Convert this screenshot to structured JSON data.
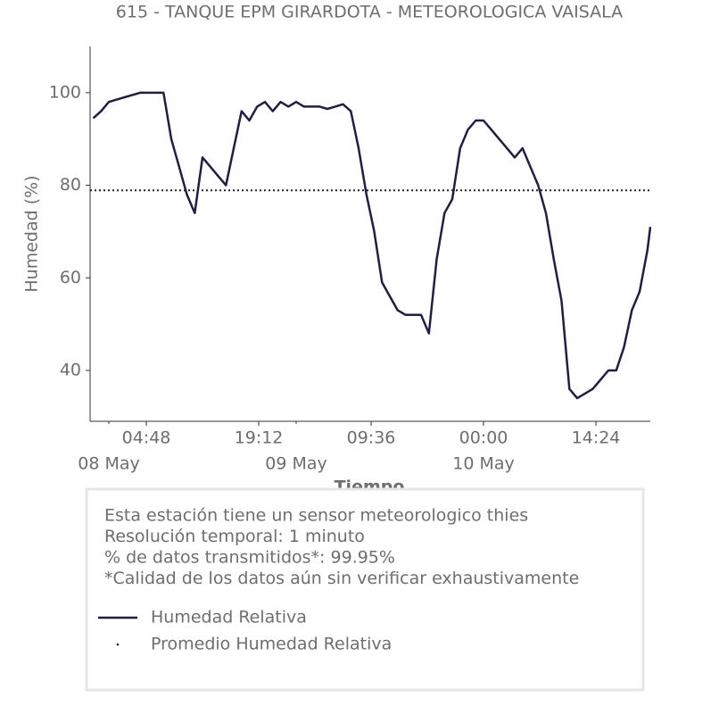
{
  "chart_data": {
    "type": "line",
    "title": "615 - TANQUE EPM GIRARDOTA - METEOROLOGICA VAISALA",
    "xlabel": "Tiempo",
    "ylabel": "Humedad (%)",
    "xlim": [
      "07 May 21:36",
      "10 May 21:22"
    ],
    "xticks": [
      {
        "value": "08 May 04:48",
        "label": "04:48"
      },
      {
        "value": "08 May 19:12",
        "label": "19:12"
      },
      {
        "value": "09 May 09:36",
        "label": "09:36"
      },
      {
        "value": "10 May 00:00",
        "label": "00:00"
      },
      {
        "value": "10 May 14:24",
        "label": "14:24"
      }
    ],
    "xticks_minor": [
      {
        "value": "08 May 00:00",
        "label": "08 May"
      },
      {
        "value": "09 May 00:00",
        "label": "09 May"
      },
      {
        "value": "10 May 00:00",
        "label": "10 May"
      }
    ],
    "ylim": [
      29,
      110
    ],
    "yticks": [
      40,
      60,
      80,
      100
    ],
    "x": [
      "07 May 22:00",
      "07 May 23:00",
      "08 May 00:00",
      "08 May 01:00",
      "08 May 02:00",
      "08 May 03:00",
      "08 May 04:00",
      "08 May 05:00",
      "08 May 06:00",
      "08 May 07:00",
      "08 May 08:00",
      "08 May 09:00",
      "08 May 10:00",
      "08 May 11:00",
      "08 May 12:00",
      "08 May 13:00",
      "08 May 14:00",
      "08 May 15:00",
      "08 May 16:00",
      "08 May 17:00",
      "08 May 18:00",
      "08 May 19:00",
      "08 May 20:00",
      "08 May 21:00",
      "08 May 22:00",
      "08 May 23:00",
      "09 May 00:00",
      "09 May 01:00",
      "09 May 02:00",
      "09 May 03:00",
      "09 May 04:00",
      "09 May 05:00",
      "09 May 06:00",
      "09 May 07:00",
      "09 May 08:00",
      "09 May 09:00",
      "09 May 10:00",
      "09 May 11:00",
      "09 May 12:00",
      "09 May 13:00",
      "09 May 14:00",
      "09 May 15:00",
      "09 May 16:00",
      "09 May 17:00",
      "09 May 18:00",
      "09 May 19:00",
      "09 May 20:00",
      "09 May 21:00",
      "09 May 22:00",
      "09 May 23:00",
      "10 May 00:00",
      "10 May 01:00",
      "10 May 02:00",
      "10 May 03:00",
      "10 May 04:00",
      "10 May 05:00",
      "10 May 06:00",
      "10 May 07:00",
      "10 May 08:00",
      "10 May 09:00",
      "10 May 10:00",
      "10 May 11:00",
      "10 May 12:00",
      "10 May 13:00",
      "10 May 14:00",
      "10 May 15:00",
      "10 May 16:00",
      "10 May 17:00",
      "10 May 18:00",
      "10 May 19:00",
      "10 May 20:00",
      "10 May 21:00",
      "10 May 21:22"
    ],
    "series": [
      {
        "name": "Humedad Relativa",
        "color": "#1f1f46",
        "values": [
          94.5,
          96,
          98,
          98.5,
          99,
          99.5,
          100,
          100,
          100,
          100,
          90,
          84,
          78,
          74,
          86,
          84,
          82,
          80,
          88,
          96,
          94,
          97,
          98,
          96,
          98,
          97,
          98,
          97,
          97,
          97,
          96.5,
          97,
          97.5,
          96,
          88,
          78,
          70,
          59,
          56,
          53,
          52,
          52,
          52,
          48,
          64,
          74,
          77,
          88,
          92,
          94,
          94,
          92,
          90,
          88,
          86,
          88,
          84,
          80,
          74,
          64,
          55,
          36,
          34,
          35,
          36,
          38,
          40,
          40,
          45,
          53,
          57,
          66,
          71
        ]
      },
      {
        "name": "Promedio Humedad Relativa",
        "color": "#1f1f46",
        "value": 78.9
      }
    ],
    "notes": [
      "Esta estación tiene un sensor meteorologico thies",
      "Resolución temporal: 1 minuto",
      "% de datos transmitidos*: 99.95%",
      "*Calidad de los datos aún sin verificar exhaustivamente"
    ]
  }
}
